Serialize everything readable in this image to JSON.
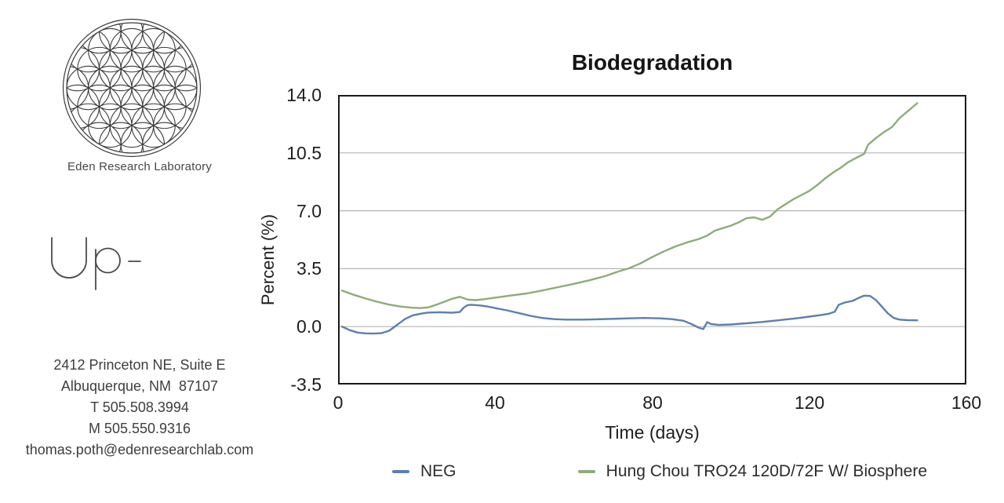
{
  "branding": {
    "org_name": "Eden Research Laboratory",
    "wordmark": "Up-",
    "address_lines": [
      "2412 Princeton NE, Suite E",
      "Albuquerque, NM  87107",
      "T 505.508.3994",
      "M 505.550.9316",
      "thomas.poth@edenresearchlab.com"
    ]
  },
  "chart_data": {
    "type": "line",
    "title": "Biodegradation",
    "xlabel": "Time (days)",
    "ylabel": "Percent (%)",
    "xlim": [
      0,
      160
    ],
    "ylim": [
      -3.5,
      14.0
    ],
    "xticks": [
      0,
      40,
      80,
      120,
      160
    ],
    "xtick_labels": [
      "0",
      "40",
      "80",
      "120",
      "160"
    ],
    "yticks": [
      14.0,
      10.5,
      7.0,
      3.5,
      0.0,
      -3.5
    ],
    "ytick_labels": [
      "14.0",
      "10.5",
      "7.0",
      "3.5",
      "0.0",
      "-3.5"
    ],
    "grid": "horizontal",
    "grid_color": "#b5b5b5",
    "frame_color": "#1a1a1a",
    "legend_position": "bottom",
    "series": [
      {
        "name": "NEG",
        "color": "#5b80ae",
        "points": [
          [
            1,
            0.0
          ],
          [
            3,
            -0.22
          ],
          [
            5,
            -0.36
          ],
          [
            7,
            -0.41
          ],
          [
            9,
            -0.42
          ],
          [
            11,
            -0.4
          ],
          [
            13,
            -0.25
          ],
          [
            15,
            0.1
          ],
          [
            17,
            0.45
          ],
          [
            19,
            0.68
          ],
          [
            21,
            0.78
          ],
          [
            23,
            0.85
          ],
          [
            26,
            0.87
          ],
          [
            29,
            0.84
          ],
          [
            31,
            0.88
          ],
          [
            32,
            1.15
          ],
          [
            33,
            1.3
          ],
          [
            34,
            1.32
          ],
          [
            36,
            1.28
          ],
          [
            38,
            1.22
          ],
          [
            40,
            1.12
          ],
          [
            43,
            0.98
          ],
          [
            46,
            0.82
          ],
          [
            49,
            0.65
          ],
          [
            52,
            0.52
          ],
          [
            55,
            0.45
          ],
          [
            58,
            0.42
          ],
          [
            62,
            0.42
          ],
          [
            66,
            0.44
          ],
          [
            70,
            0.47
          ],
          [
            74,
            0.5
          ],
          [
            78,
            0.52
          ],
          [
            82,
            0.5
          ],
          [
            85,
            0.45
          ],
          [
            88,
            0.35
          ],
          [
            90,
            0.15
          ],
          [
            92,
            -0.08
          ],
          [
            93,
            -0.15
          ],
          [
            94,
            0.27
          ],
          [
            95,
            0.15
          ],
          [
            97,
            0.1
          ],
          [
            100,
            0.13
          ],
          [
            104,
            0.2
          ],
          [
            108,
            0.28
          ],
          [
            112,
            0.38
          ],
          [
            116,
            0.48
          ],
          [
            120,
            0.6
          ],
          [
            123,
            0.7
          ],
          [
            125,
            0.78
          ],
          [
            126.5,
            0.9
          ],
          [
            127.5,
            1.32
          ],
          [
            129,
            1.45
          ],
          [
            131,
            1.55
          ],
          [
            133,
            1.78
          ],
          [
            134,
            1.87
          ],
          [
            135.5,
            1.85
          ],
          [
            137,
            1.6
          ],
          [
            138.5,
            1.2
          ],
          [
            140,
            0.8
          ],
          [
            141.5,
            0.52
          ],
          [
            143,
            0.42
          ],
          [
            145,
            0.39
          ],
          [
            147.5,
            0.38
          ]
        ]
      },
      {
        "name": "Hung Chou TRO24 120D/72F W/ Biosphere",
        "color": "#8fab79",
        "points": [
          [
            1,
            2.18
          ],
          [
            4,
            1.92
          ],
          [
            7,
            1.7
          ],
          [
            10,
            1.5
          ],
          [
            13,
            1.33
          ],
          [
            16,
            1.21
          ],
          [
            19,
            1.14
          ],
          [
            21,
            1.12
          ],
          [
            23,
            1.16
          ],
          [
            25,
            1.32
          ],
          [
            27,
            1.5
          ],
          [
            29,
            1.68
          ],
          [
            31,
            1.8
          ],
          [
            33,
            1.63
          ],
          [
            35,
            1.6
          ],
          [
            37,
            1.65
          ],
          [
            40,
            1.75
          ],
          [
            44,
            1.88
          ],
          [
            48,
            2.0
          ],
          [
            52,
            2.18
          ],
          [
            56,
            2.38
          ],
          [
            60,
            2.58
          ],
          [
            64,
            2.8
          ],
          [
            68,
            3.05
          ],
          [
            71,
            3.3
          ],
          [
            74,
            3.52
          ],
          [
            77,
            3.82
          ],
          [
            80,
            4.2
          ],
          [
            83,
            4.55
          ],
          [
            86,
            4.85
          ],
          [
            89,
            5.1
          ],
          [
            92,
            5.3
          ],
          [
            94,
            5.5
          ],
          [
            96,
            5.8
          ],
          [
            98,
            5.95
          ],
          [
            100,
            6.1
          ],
          [
            102,
            6.3
          ],
          [
            104,
            6.55
          ],
          [
            106,
            6.6
          ],
          [
            108,
            6.45
          ],
          [
            110,
            6.65
          ],
          [
            112,
            7.1
          ],
          [
            114,
            7.4
          ],
          [
            116,
            7.7
          ],
          [
            118,
            7.95
          ],
          [
            120,
            8.2
          ],
          [
            122,
            8.55
          ],
          [
            124,
            8.95
          ],
          [
            126,
            9.3
          ],
          [
            128,
            9.6
          ],
          [
            130,
            9.95
          ],
          [
            132,
            10.2
          ],
          [
            134,
            10.45
          ],
          [
            135,
            11.0
          ],
          [
            137,
            11.4
          ],
          [
            139,
            11.75
          ],
          [
            141,
            12.05
          ],
          [
            143,
            12.6
          ],
          [
            145,
            13.0
          ],
          [
            147.5,
            13.5
          ]
        ]
      }
    ]
  }
}
